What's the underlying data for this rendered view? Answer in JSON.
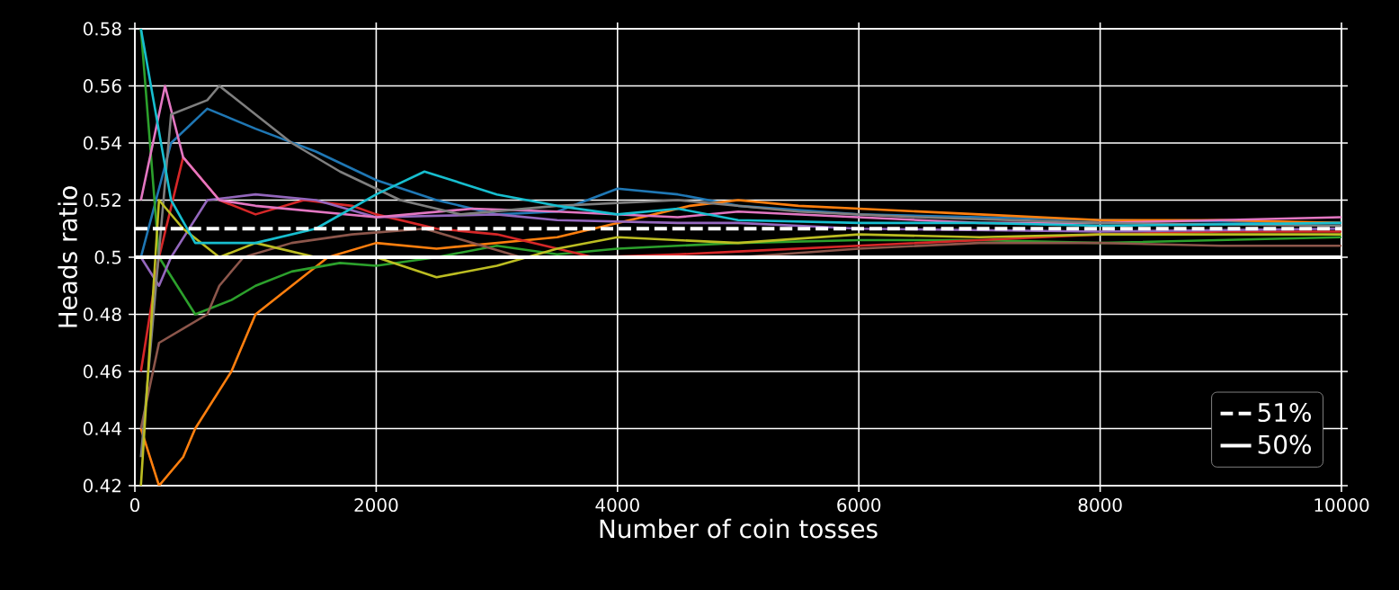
{
  "chart_data": {
    "type": "line",
    "xlabel": "Number of coin tosses",
    "ylabel": "Heads ratio",
    "xlim": [
      0,
      10000
    ],
    "ylim": [
      0.42,
      0.58
    ],
    "xticks": [
      0,
      2000,
      4000,
      6000,
      8000,
      10000
    ],
    "yticks": [
      0.42,
      0.44,
      0.46,
      0.48,
      0.5,
      0.52,
      0.54,
      0.56,
      0.58
    ],
    "grid": true,
    "legend": "bottom right",
    "line_style": "solid",
    "marker": "none",
    "series": [
      {
        "color": "#1f77b4",
        "x": [
          50,
          300,
          600,
          1000,
          1500,
          2000,
          2500,
          3000,
          3500,
          4000,
          4500,
          5000,
          6000,
          7000,
          8000,
          10000
        ],
        "values": [
          0.5,
          0.54,
          0.552,
          0.545,
          0.537,
          0.527,
          0.52,
          0.515,
          0.516,
          0.524,
          0.522,
          0.518,
          0.515,
          0.514,
          0.513,
          0.512
        ]
      },
      {
        "color": "#ff7f0e",
        "x": [
          50,
          200,
          400,
          500,
          800,
          1000,
          1300,
          1600,
          2000,
          2500,
          3000,
          3500,
          4000,
          4600,
          5000,
          5500,
          6000,
          7000,
          8000,
          9000,
          10000
        ],
        "values": [
          0.44,
          0.42,
          0.43,
          0.44,
          0.46,
          0.48,
          0.49,
          0.5,
          0.505,
          0.503,
          0.505,
          0.507,
          0.512,
          0.518,
          0.52,
          0.518,
          0.517,
          0.515,
          0.513,
          0.513,
          0.512
        ]
      },
      {
        "color": "#2ca02c",
        "x": [
          50,
          200,
          500,
          800,
          1000,
          1300,
          1700,
          2000,
          2500,
          3000,
          3500,
          4000,
          5000,
          6000,
          7000,
          8000,
          10000
        ],
        "values": [
          0.58,
          0.5,
          0.48,
          0.485,
          0.49,
          0.495,
          0.498,
          0.497,
          0.5,
          0.504,
          0.501,
          0.503,
          0.505,
          0.506,
          0.506,
          0.505,
          0.507
        ]
      },
      {
        "color": "#d62728",
        "x": [
          50,
          200,
          400,
          700,
          1000,
          1400,
          1800,
          2000,
          2500,
          3000,
          3800,
          4500,
          5000,
          6000,
          7000,
          8000,
          9000,
          10000
        ],
        "values": [
          0.46,
          0.5,
          0.535,
          0.52,
          0.515,
          0.52,
          0.518,
          0.515,
          0.51,
          0.508,
          0.5,
          0.501,
          0.502,
          0.504,
          0.506,
          0.508,
          0.509,
          0.509
        ]
      },
      {
        "color": "#9467bd",
        "x": [
          50,
          200,
          300,
          600,
          1000,
          1500,
          2000,
          3000,
          3500,
          4500,
          5000,
          6000,
          8000,
          10000
        ],
        "values": [
          0.5,
          0.49,
          0.5,
          0.52,
          0.522,
          0.52,
          0.514,
          0.515,
          0.513,
          0.512,
          0.512,
          0.51,
          0.509,
          0.51
        ]
      },
      {
        "color": "#8c564b",
        "x": [
          50,
          200,
          400,
          600,
          700,
          900,
          1300,
          1800,
          2400,
          2800,
          3200,
          4000,
          5000,
          6000,
          7000,
          8000,
          9000,
          10000
        ],
        "values": [
          0.44,
          0.47,
          0.475,
          0.48,
          0.49,
          0.5,
          0.505,
          0.508,
          0.51,
          0.505,
          0.5,
          0.5,
          0.5,
          0.503,
          0.505,
          0.505,
          0.504,
          0.504
        ]
      },
      {
        "color": "#e377c2",
        "x": [
          50,
          250,
          400,
          700,
          1000,
          1500,
          2000,
          2800,
          3500,
          4500,
          5000,
          6000,
          7000,
          8000,
          9000,
          10000
        ],
        "values": [
          0.52,
          0.56,
          0.535,
          0.52,
          0.518,
          0.516,
          0.514,
          0.517,
          0.516,
          0.514,
          0.516,
          0.514,
          0.512,
          0.512,
          0.513,
          0.514
        ]
      },
      {
        "color": "#7f7f7f",
        "x": [
          50,
          300,
          600,
          700,
          1000,
          1300,
          1700,
          2200,
          2700,
          3500,
          4500,
          5500,
          6500,
          8000,
          10000
        ],
        "values": [
          0.43,
          0.55,
          0.555,
          0.56,
          0.55,
          0.54,
          0.53,
          0.52,
          0.515,
          0.518,
          0.52,
          0.516,
          0.514,
          0.512,
          0.511
        ]
      },
      {
        "color": "#bcbd22",
        "x": [
          50,
          200,
          400,
          700,
          1000,
          1500,
          2000,
          2500,
          3000,
          3500,
          4000,
          5000,
          6000,
          7000,
          8000,
          10000
        ],
        "values": [
          0.42,
          0.52,
          0.51,
          0.5,
          0.505,
          0.5,
          0.5,
          0.493,
          0.497,
          0.503,
          0.507,
          0.505,
          0.508,
          0.507,
          0.508,
          0.508
        ]
      },
      {
        "color": "#17becf",
        "x": [
          50,
          300,
          500,
          1000,
          1500,
          2000,
          2400,
          3000,
          3500,
          4000,
          4500,
          5000,
          6000,
          7000,
          8000,
          10000
        ],
        "values": [
          0.58,
          0.52,
          0.505,
          0.505,
          0.51,
          0.522,
          0.53,
          0.522,
          0.518,
          0.515,
          0.517,
          0.513,
          0.512,
          0.512,
          0.511,
          0.512
        ]
      }
    ],
    "ref_lines": [
      {
        "axis": "y",
        "value": 0.51,
        "label": "51%",
        "color": "#ffffff",
        "line_style": "dashed"
      },
      {
        "axis": "y",
        "value": 0.5,
        "label": "50%",
        "color": "#ffffff",
        "line_style": "solid"
      }
    ]
  }
}
